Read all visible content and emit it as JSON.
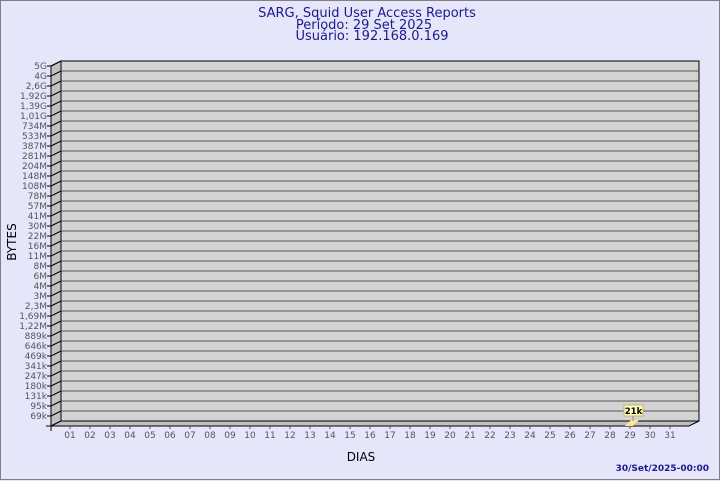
{
  "chart_data": {
    "type": "bar",
    "title": "SARG, Squid User Access Reports",
    "subtitle_period": "Período: 29 Set 2025",
    "subtitle_user": "Usuário: 192.168.0.169",
    "xlabel": "DIAS",
    "ylabel": "BYTES",
    "y_scale": "log",
    "y_ticks": [
      "5G",
      "4G",
      "2,6G",
      "1,92G",
      "1,39G",
      "1,01G",
      "734M",
      "533M",
      "387M",
      "281M",
      "204M",
      "148M",
      "108M",
      "78M",
      "57M",
      "41M",
      "30M",
      "22M",
      "16M",
      "11M",
      "8M",
      "6M",
      "4M",
      "3M",
      "2,3M",
      "1,69M",
      "1,22M",
      "889k",
      "646k",
      "469k",
      "341k",
      "247k",
      "180k",
      "131k",
      "95k",
      "69k"
    ],
    "categories": [
      "01",
      "02",
      "03",
      "04",
      "05",
      "06",
      "07",
      "08",
      "09",
      "10",
      "11",
      "12",
      "13",
      "14",
      "15",
      "16",
      "17",
      "18",
      "19",
      "20",
      "21",
      "22",
      "23",
      "24",
      "25",
      "26",
      "27",
      "28",
      "29",
      "30",
      "31"
    ],
    "bars": [
      {
        "day": "29",
        "value": 21000,
        "label": "21k"
      }
    ],
    "grid": true,
    "colors": {
      "background": "#e6e6fa",
      "wall": "#d3d3d3",
      "side_wall": "#c0c0c0",
      "bar": "#ffe88c",
      "title": "#1a1a8c"
    }
  },
  "footer": {
    "timestamp": "30/Set/2025-00:00"
  }
}
